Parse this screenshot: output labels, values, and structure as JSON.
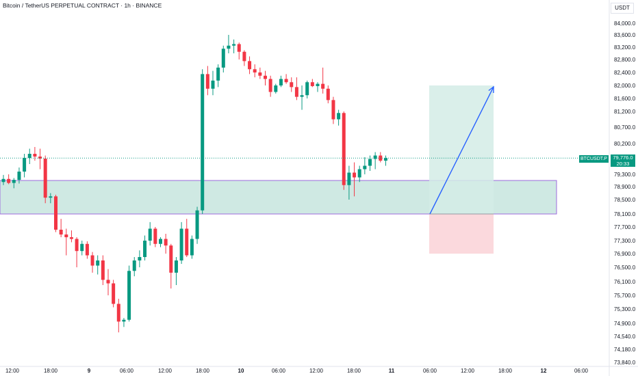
{
  "header": {
    "title": "Bitcoin / TetherUS PERPETUAL CONTRACT · 1h · BINANCE",
    "currency": "USDT"
  },
  "ticker": {
    "label": "BTCUSDT.P",
    "price": "79,776.0",
    "countdown": "20:33"
  },
  "colors": {
    "up": "#089981",
    "down": "#f23645",
    "zone_fill": "#cfe9e3",
    "zone_border": "#9c6ade",
    "target_fill": "#d4ece6",
    "stop_fill": "#fbd9dd",
    "arrow": "#2962ff"
  },
  "chart_data": {
    "type": "candlestick",
    "title": "Bitcoin / TetherUS PERPETUAL CONTRACT · 1h · BINANCE",
    "y_tick_labels": [
      "84,000.0",
      "83,600.0",
      "83,200.0",
      "82,800.0",
      "82,400.0",
      "82,000.0",
      "81,600.0",
      "81,200.0",
      "80,700.0",
      "80,200.0",
      "79,300.0",
      "78,900.0",
      "78,500.0",
      "78,100.0",
      "77,700.0",
      "77,300.0",
      "76,900.0",
      "76,500.0",
      "76,100.0",
      "75,700.0",
      "75,300.0",
      "74,900.0",
      "74,540.0",
      "74,180.0",
      "73,840.0"
    ],
    "x_tick_labels": [
      "12:00",
      "18:00",
      "9",
      "06:00",
      "12:00",
      "18:00",
      "10",
      "06:00",
      "12:00",
      "18:00",
      "11",
      "06:00",
      "12:00",
      "18:00",
      "12",
      "06:00"
    ],
    "current_price": 79776.0,
    "demand_zone": [
      78100,
      79100
    ],
    "long_position": {
      "entry": 78100,
      "target": 82000,
      "stop": 76900
    },
    "ohlc": [
      [
        79050,
        79280,
        78950,
        79150
      ],
      [
        79150,
        79300,
        78980,
        79020
      ],
      [
        79020,
        79180,
        78850,
        79120
      ],
      [
        79120,
        79500,
        79000,
        79380
      ],
      [
        79380,
        79900,
        79200,
        79780
      ],
      [
        79780,
        80050,
        79600,
        79900
      ],
      [
        79900,
        80100,
        79700,
        79820
      ],
      [
        79820,
        80050,
        79450,
        79760
      ],
      [
        79760,
        79850,
        78400,
        78560
      ],
      [
        78560,
        78700,
        78400,
        78600
      ],
      [
        78600,
        78650,
        77550,
        77620
      ],
      [
        77620,
        77950,
        77400,
        77480
      ],
      [
        77480,
        77650,
        76850,
        77400
      ],
      [
        77400,
        77600,
        77250,
        77350
      ],
      [
        77350,
        77400,
        76500,
        76980
      ],
      [
        76980,
        77300,
        76850,
        77200
      ],
      [
        77200,
        77280,
        76750,
        76850
      ],
      [
        76850,
        76950,
        76350,
        76550
      ],
      [
        76550,
        76850,
        76300,
        76700
      ],
      [
        76700,
        76850,
        76000,
        76150
      ],
      [
        76150,
        76450,
        75700,
        76050
      ],
      [
        76050,
        76150,
        75350,
        75450
      ],
      [
        75450,
        75600,
        74650,
        74950
      ],
      [
        74950,
        75050,
        74800,
        75000
      ],
      [
        75000,
        76550,
        74950,
        76400
      ],
      [
        76400,
        76800,
        76250,
        76700
      ],
      [
        76700,
        77000,
        76500,
        76800
      ],
      [
        76800,
        77450,
        76700,
        77300
      ],
      [
        77300,
        77850,
        77150,
        77650
      ],
      [
        77650,
        77700,
        77100,
        77200
      ],
      [
        77200,
        77400,
        77100,
        77350
      ],
      [
        77350,
        77500,
        76900,
        77150
      ],
      [
        77150,
        77200,
        75900,
        76350
      ],
      [
        76350,
        76800,
        76000,
        76700
      ],
      [
        76700,
        77850,
        76600,
        77650
      ],
      [
        77650,
        77950,
        76800,
        76850
      ],
      [
        76850,
        77450,
        76750,
        77350
      ],
      [
        77350,
        78300,
        77200,
        78200
      ],
      [
        78200,
        82500,
        78100,
        82350
      ],
      [
        82350,
        82600,
        81700,
        81900
      ],
      [
        81900,
        82450,
        81700,
        82150
      ],
      [
        82150,
        82650,
        81950,
        82550
      ],
      [
        82550,
        83250,
        82400,
        83150
      ],
      [
        83150,
        83600,
        83000,
        83250
      ],
      [
        83250,
        83450,
        83000,
        83300
      ],
      [
        83300,
        83350,
        82800,
        83050
      ],
      [
        83050,
        83100,
        82600,
        82750
      ],
      [
        82750,
        82900,
        82350,
        82500
      ],
      [
        82500,
        82650,
        82250,
        82400
      ],
      [
        82400,
        82550,
        82200,
        82300
      ],
      [
        82300,
        82450,
        82000,
        82200
      ],
      [
        82200,
        82300,
        81650,
        81800
      ],
      [
        81800,
        82050,
        81750,
        82000
      ],
      [
        82000,
        82300,
        81950,
        82200
      ],
      [
        82200,
        82350,
        82050,
        82100
      ],
      [
        82100,
        82250,
        81800,
        81950
      ],
      [
        81950,
        82250,
        81550,
        81650
      ],
      [
        81650,
        82000,
        81250,
        81700
      ],
      [
        81700,
        82150,
        81600,
        82100
      ],
      [
        82100,
        82200,
        81950,
        81980
      ],
      [
        81980,
        82100,
        81800,
        82050
      ],
      [
        82050,
        82550,
        81750,
        81900
      ],
      [
        81900,
        82000,
        81450,
        81550
      ],
      [
        81550,
        81650,
        80800,
        80950
      ],
      [
        80950,
        81250,
        80750,
        81150
      ],
      [
        81150,
        81200,
        78800,
        78950
      ],
      [
        78950,
        79550,
        78500,
        79350
      ],
      [
        79350,
        79650,
        78600,
        79200
      ],
      [
        79200,
        79550,
        79050,
        79450
      ],
      [
        79450,
        79800,
        79300,
        79550
      ],
      [
        79550,
        79850,
        79400,
        79750
      ],
      [
        79750,
        79950,
        79450,
        79850
      ],
      [
        79850,
        79950,
        79650,
        79700
      ],
      [
        79700,
        79850,
        79550,
        79776
      ]
    ]
  }
}
